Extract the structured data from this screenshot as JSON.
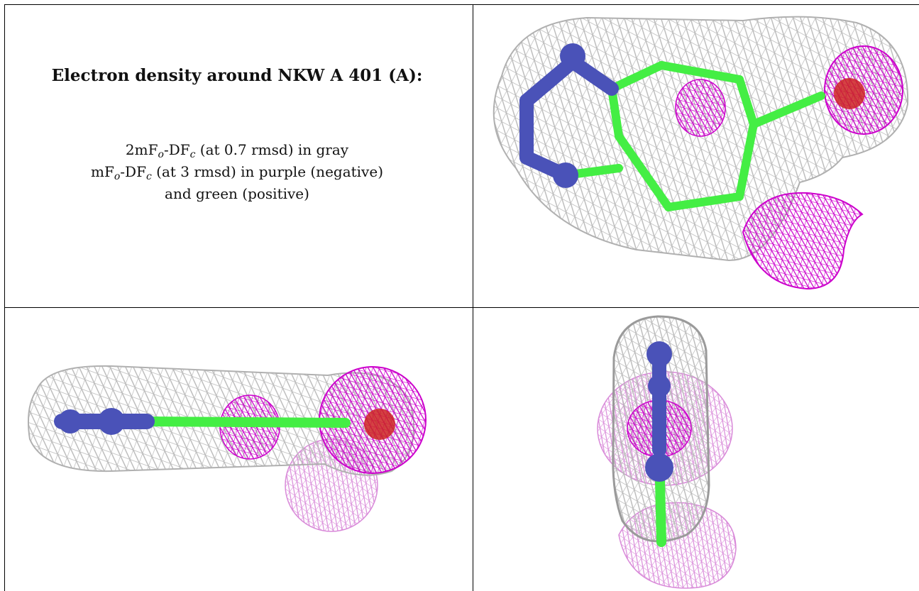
{
  "caption": {
    "title": "Electron density around NKW A 401 (A):",
    "line1": {
      "pre": "2mF",
      "sub1": "o",
      "mid": "-DF",
      "sub2": "c",
      "post": " (at 0.7 rmsd) in gray"
    },
    "line2": {
      "pre": "mF",
      "sub1": "o",
      "mid": "-DF",
      "sub2": "c",
      "post": " (at 3 rmsd) in purple (negative)"
    },
    "line3": "and green (positive)"
  },
  "colors": {
    "mesh_gray": "#b8b8b8",
    "mesh_purple": "#cc00cc",
    "carbon_green": "#44ee44",
    "nitrogen_blue": "#4a52b8",
    "oxygen_red": "#cc2222"
  }
}
